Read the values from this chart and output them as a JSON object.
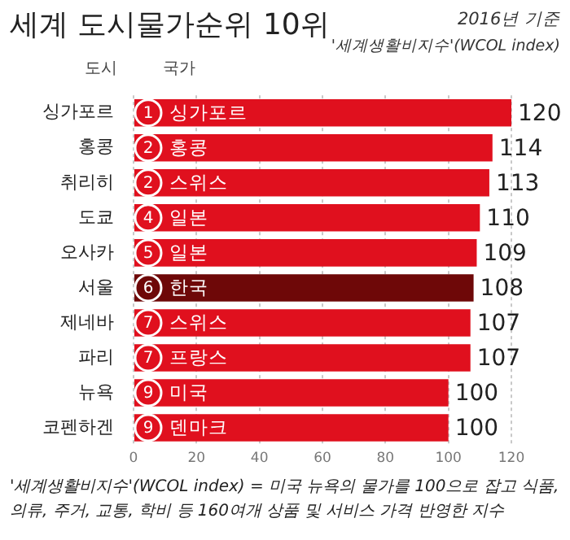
{
  "chart_data": {
    "type": "bar",
    "orientation": "horizontal",
    "title": "세계 도시물가순위 10위",
    "subtitle": "2016년 기준",
    "xlabel": "'세계생활비지수'(WCOL index)",
    "categories": [
      "싱가포르",
      "홍콩",
      "취리히",
      "도쿄",
      "오사카",
      "서울",
      "제네바",
      "파리",
      "뉴욕",
      "코펜하겐"
    ],
    "values": [
      120,
      114,
      113,
      110,
      109,
      108,
      107,
      107,
      100,
      100
    ],
    "colors": [
      "#e0101e",
      "#e0101e",
      "#e0101e",
      "#e0101e",
      "#e0101e",
      "#6e0808",
      "#e0101e",
      "#e0101e",
      "#e0101e",
      "#e0101e"
    ],
    "xlim": [
      0,
      120
    ],
    "xticks": [
      0,
      20,
      40,
      60,
      80,
      100,
      120
    ],
    "grid": "x",
    "data_labels": true,
    "annotations": [
      "도시",
      "국가",
      "1",
      "싱가포르",
      "2",
      "홍콩",
      "2",
      "스위스",
      "4",
      "일본",
      "5",
      "일본",
      "6",
      "한국",
      "7",
      "스위스",
      "7",
      "프랑스",
      "9",
      "미국",
      "9",
      "덴마크",
      "'세계생활비지수'(WCOL index) = 미국 뉴욕의 물가를 100으로 잡고 식품, 의류, 주거, 교통, 학비 등 160여개 상품 및 서비스 가격 반영한 지수"
    ]
  }
}
